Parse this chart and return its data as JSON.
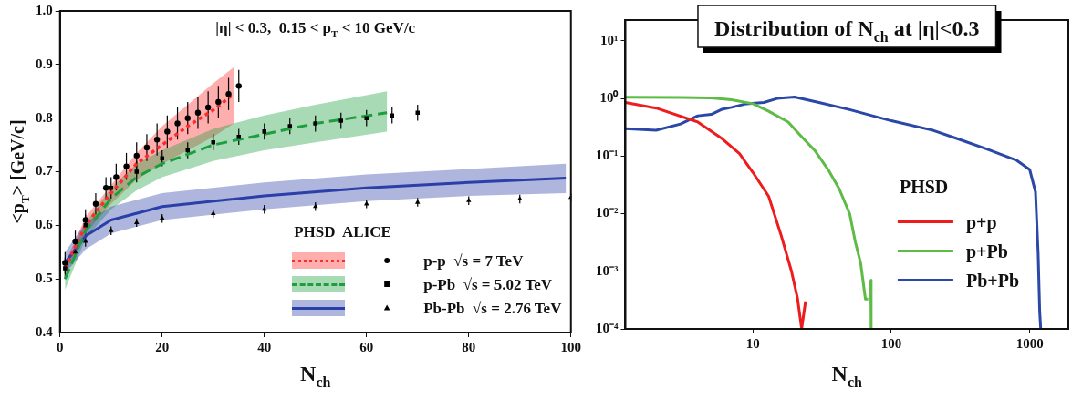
{
  "chart_data": [
    {
      "type": "line",
      "title": "|η| < 0.3,  0.15 < p$_{T}$ < 10 GeV/c",
      "xlabel": "N$_{ch}$",
      "ylabel": "<p$_{T}$> [GeV/c]",
      "legend_title": "PHSD  ALICE",
      "legend": "bottom right",
      "grid": false,
      "xlim": [
        0,
        100
      ],
      "xticks": [
        0,
        20,
        40,
        60,
        80,
        100
      ],
      "ylim": [
        0.4,
        1.0
      ],
      "yticks": [
        0.4,
        0.5,
        0.6,
        0.7,
        0.8,
        0.9,
        {
          "value": 1,
          "label": "1.0"
        }
      ],
      "series": [
        {
          "type": "line",
          "color": "#ff2a2a",
          "line_style": "dotted",
          "marker": "none",
          "x": [
            1,
            5,
            10,
            15,
            20,
            25,
            30,
            34
          ],
          "values": [
            0.52,
            0.6,
            0.66,
            0.715,
            0.75,
            0.785,
            0.815,
            0.845
          ],
          "lower": [
            0.51,
            0.585,
            0.64,
            0.685,
            0.715,
            0.74,
            0.765,
            0.79
          ],
          "upper": [
            0.53,
            0.615,
            0.675,
            0.735,
            0.785,
            0.825,
            0.865,
            0.895
          ]
        },
        {
          "type": "line",
          "color": "#1e9e3e",
          "line_style": "dashed",
          "marker": "none",
          "x": [
            1,
            5,
            10,
            15,
            20,
            30,
            40,
            50,
            64
          ],
          "values": [
            0.5,
            0.59,
            0.65,
            0.69,
            0.715,
            0.75,
            0.77,
            0.79,
            0.81
          ],
          "lower": [
            0.48,
            0.575,
            0.63,
            0.665,
            0.69,
            0.72,
            0.74,
            0.755,
            0.775
          ],
          "upper": [
            0.52,
            0.605,
            0.67,
            0.715,
            0.74,
            0.78,
            0.805,
            0.825,
            0.85
          ]
        },
        {
          "type": "line",
          "color": "#2b3fa8",
          "line_style": "solid",
          "marker": "none",
          "x": [
            1,
            5,
            10,
            20,
            40,
            60,
            80,
            99
          ],
          "values": [
            0.53,
            0.58,
            0.61,
            0.635,
            0.655,
            0.67,
            0.68,
            0.688
          ],
          "lower": [
            0.51,
            0.555,
            0.585,
            0.61,
            0.63,
            0.645,
            0.655,
            0.66
          ],
          "upper": [
            0.55,
            0.605,
            0.635,
            0.66,
            0.68,
            0.695,
            0.705,
            0.715
          ]
        },
        {
          "name": "p-p  √s = 7 TeV",
          "type": "scatter",
          "color": "#000000",
          "marker": "circle",
          "x": [
            1,
            3,
            5,
            7,
            9,
            11,
            13,
            15,
            17,
            19,
            21,
            23,
            25,
            27,
            29,
            31,
            33,
            35
          ],
          "values": [
            0.53,
            0.57,
            0.61,
            0.64,
            0.67,
            0.69,
            0.71,
            0.73,
            0.745,
            0.76,
            0.775,
            0.79,
            0.8,
            0.81,
            0.82,
            0.83,
            0.845,
            0.86
          ],
          "errors": [
            0.02,
            0.02,
            0.02,
            0.02,
            0.02,
            0.025,
            0.025,
            0.025,
            0.025,
            0.03,
            0.03,
            0.03,
            0.03,
            0.03,
            0.03,
            0.03,
            0.03,
            0.03
          ]
        },
        {
          "name": "p-Pb  √s = 5.02 TeV",
          "type": "scatter",
          "color": "#000000",
          "marker": "square",
          "x": [
            1,
            5,
            10,
            15,
            20,
            25,
            30,
            35,
            40,
            45,
            50,
            55,
            60,
            65,
            70
          ],
          "values": [
            0.52,
            0.6,
            0.67,
            0.7,
            0.725,
            0.74,
            0.755,
            0.765,
            0.775,
            0.785,
            0.79,
            0.795,
            0.8,
            0.805,
            0.81
          ],
          "errors": [
            0.02,
            0.02,
            0.02,
            0.02,
            0.015,
            0.015,
            0.015,
            0.015,
            0.015,
            0.015,
            0.015,
            0.015,
            0.015,
            0.015,
            0.015
          ]
        },
        {
          "name": "Pb-Pb  √s = 2.76 TeV",
          "type": "scatter",
          "color": "#000000",
          "marker": "triangle",
          "x": [
            3,
            5,
            10,
            15,
            20,
            30,
            40,
            50,
            60,
            70,
            80,
            90,
            100
          ],
          "values": [
            0.55,
            0.57,
            0.59,
            0.605,
            0.613,
            0.622,
            0.63,
            0.635,
            0.64,
            0.643,
            0.646,
            0.649,
            0.652
          ],
          "errors": [
            0.01,
            0.01,
            0.008,
            0.008,
            0.008,
            0.008,
            0.008,
            0.008,
            0.008,
            0.008,
            0.008,
            0.008,
            0.008
          ]
        }
      ]
    },
    {
      "type": "line",
      "title": "Distribution of N$_{ch}$ at |η|<0.3",
      "xlabel": "N$_{ch}$",
      "legend_title": "PHSD",
      "legend": "right",
      "grid": false,
      "log": "xy",
      "xlim": [
        1.2,
        1900
      ],
      "xticks": [
        10,
        100,
        1000
      ],
      "ylim": [
        0.0001,
        23
      ],
      "yticks": [
        {
          "value": 0.0001,
          "label": "10⁻⁴"
        },
        {
          "value": 0.001,
          "label": "10⁻³"
        },
        {
          "value": 0.01,
          "label": "10⁻²"
        },
        {
          "value": 0.1,
          "label": "10⁻¹"
        },
        {
          "value": 1,
          "label": "10⁰"
        },
        {
          "value": 10,
          "label": "10¹"
        }
      ],
      "series": [
        {
          "name": "p+p",
          "color": "#ee1c1c",
          "x": [
            1.2,
            2,
            4,
            6,
            8,
            10,
            13,
            16,
            19,
            21,
            22.5,
            24
          ],
          "values": [
            0.85,
            0.68,
            0.39,
            0.2,
            0.11,
            0.052,
            0.02,
            0.0042,
            0.001,
            0.00034,
            0.0001,
            0.0003
          ]
        },
        {
          "name": "p+Pb",
          "color": "#5dbb46",
          "x": [
            1.2,
            3,
            5,
            7,
            10,
            13,
            18,
            22,
            28,
            35,
            42,
            50,
            55,
            60,
            65,
            68,
            70,
            71,
            71.5
          ],
          "values": [
            1.05,
            1.04,
            1.02,
            0.95,
            0.81,
            0.6,
            0.39,
            0.23,
            0.125,
            0.058,
            0.027,
            0.01,
            0.0032,
            0.0014,
            0.00033,
            0.00033,
            null,
            0.0007,
            0.0001
          ]
        },
        {
          "name": "Pb+Pb",
          "color": "#2b48a8",
          "x": [
            1.2,
            2,
            3,
            4,
            5,
            6,
            7,
            9,
            12,
            15,
            20,
            30,
            50,
            100,
            200,
            300,
            500,
            800,
            1000,
            1100,
            1150,
            1180,
            1200
          ],
          "values": [
            0.3,
            0.28,
            0.36,
            0.5,
            0.53,
            0.65,
            0.7,
            0.81,
            0.85,
            1.0,
            1.06,
            0.85,
            0.64,
            0.41,
            0.28,
            0.2,
            0.13,
            0.085,
            0.058,
            0.024,
            0.002,
            0.0002,
            0.0001
          ]
        }
      ]
    }
  ]
}
